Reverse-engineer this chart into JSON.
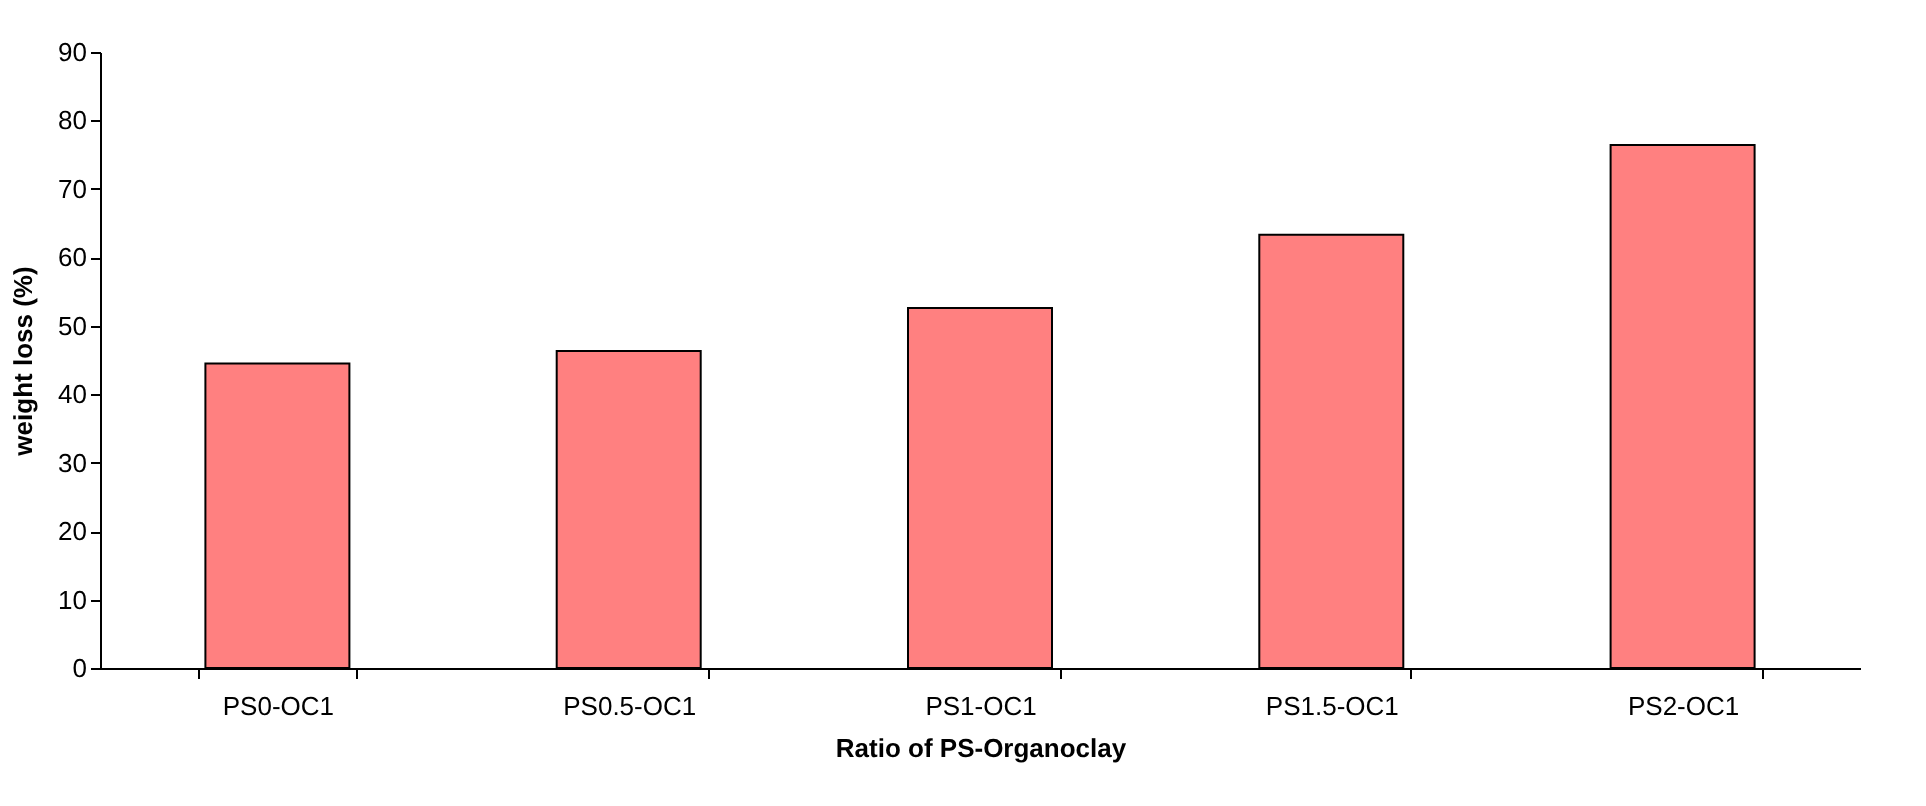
{
  "chart_data": {
    "type": "bar",
    "xlabel": "Ratio of PS-Organoclay",
    "ylabel": "weight loss (%)",
    "categories": [
      "PS0-OC1",
      "PS0.5-OC1",
      "PS1-OC1",
      "PS1.5-OC1",
      "PS2-OC1"
    ],
    "values": [
      44.5,
      46.3,
      52.6,
      63.3,
      76.4
    ],
    "color": "#ff8080",
    "ylim": [
      0,
      90
    ],
    "yticks": [
      0,
      10,
      20,
      30,
      40,
      50,
      60,
      70,
      80,
      90
    ],
    "grid": false
  }
}
